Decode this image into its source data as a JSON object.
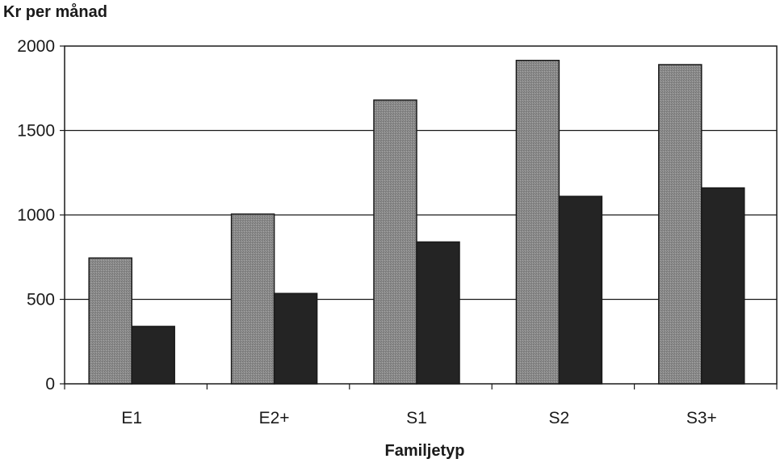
{
  "chart_data": {
    "type": "bar",
    "ylabel": "Kr per månad",
    "xlabel": "Familjetyp",
    "categories": [
      "E1",
      "E2+",
      "S1",
      "S2",
      "S3+"
    ],
    "series": [
      {
        "values": [
          745,
          1005,
          1680,
          1915,
          1890
        ],
        "color": "#8a8a8a"
      },
      {
        "values": [
          340,
          535,
          840,
          1110,
          1160
        ],
        "color": "#242424"
      }
    ],
    "ylim": [
      0,
      2000
    ],
    "yticks": [
      0,
      500,
      1000,
      1500,
      2000
    ],
    "grid": true,
    "legend": "none"
  }
}
